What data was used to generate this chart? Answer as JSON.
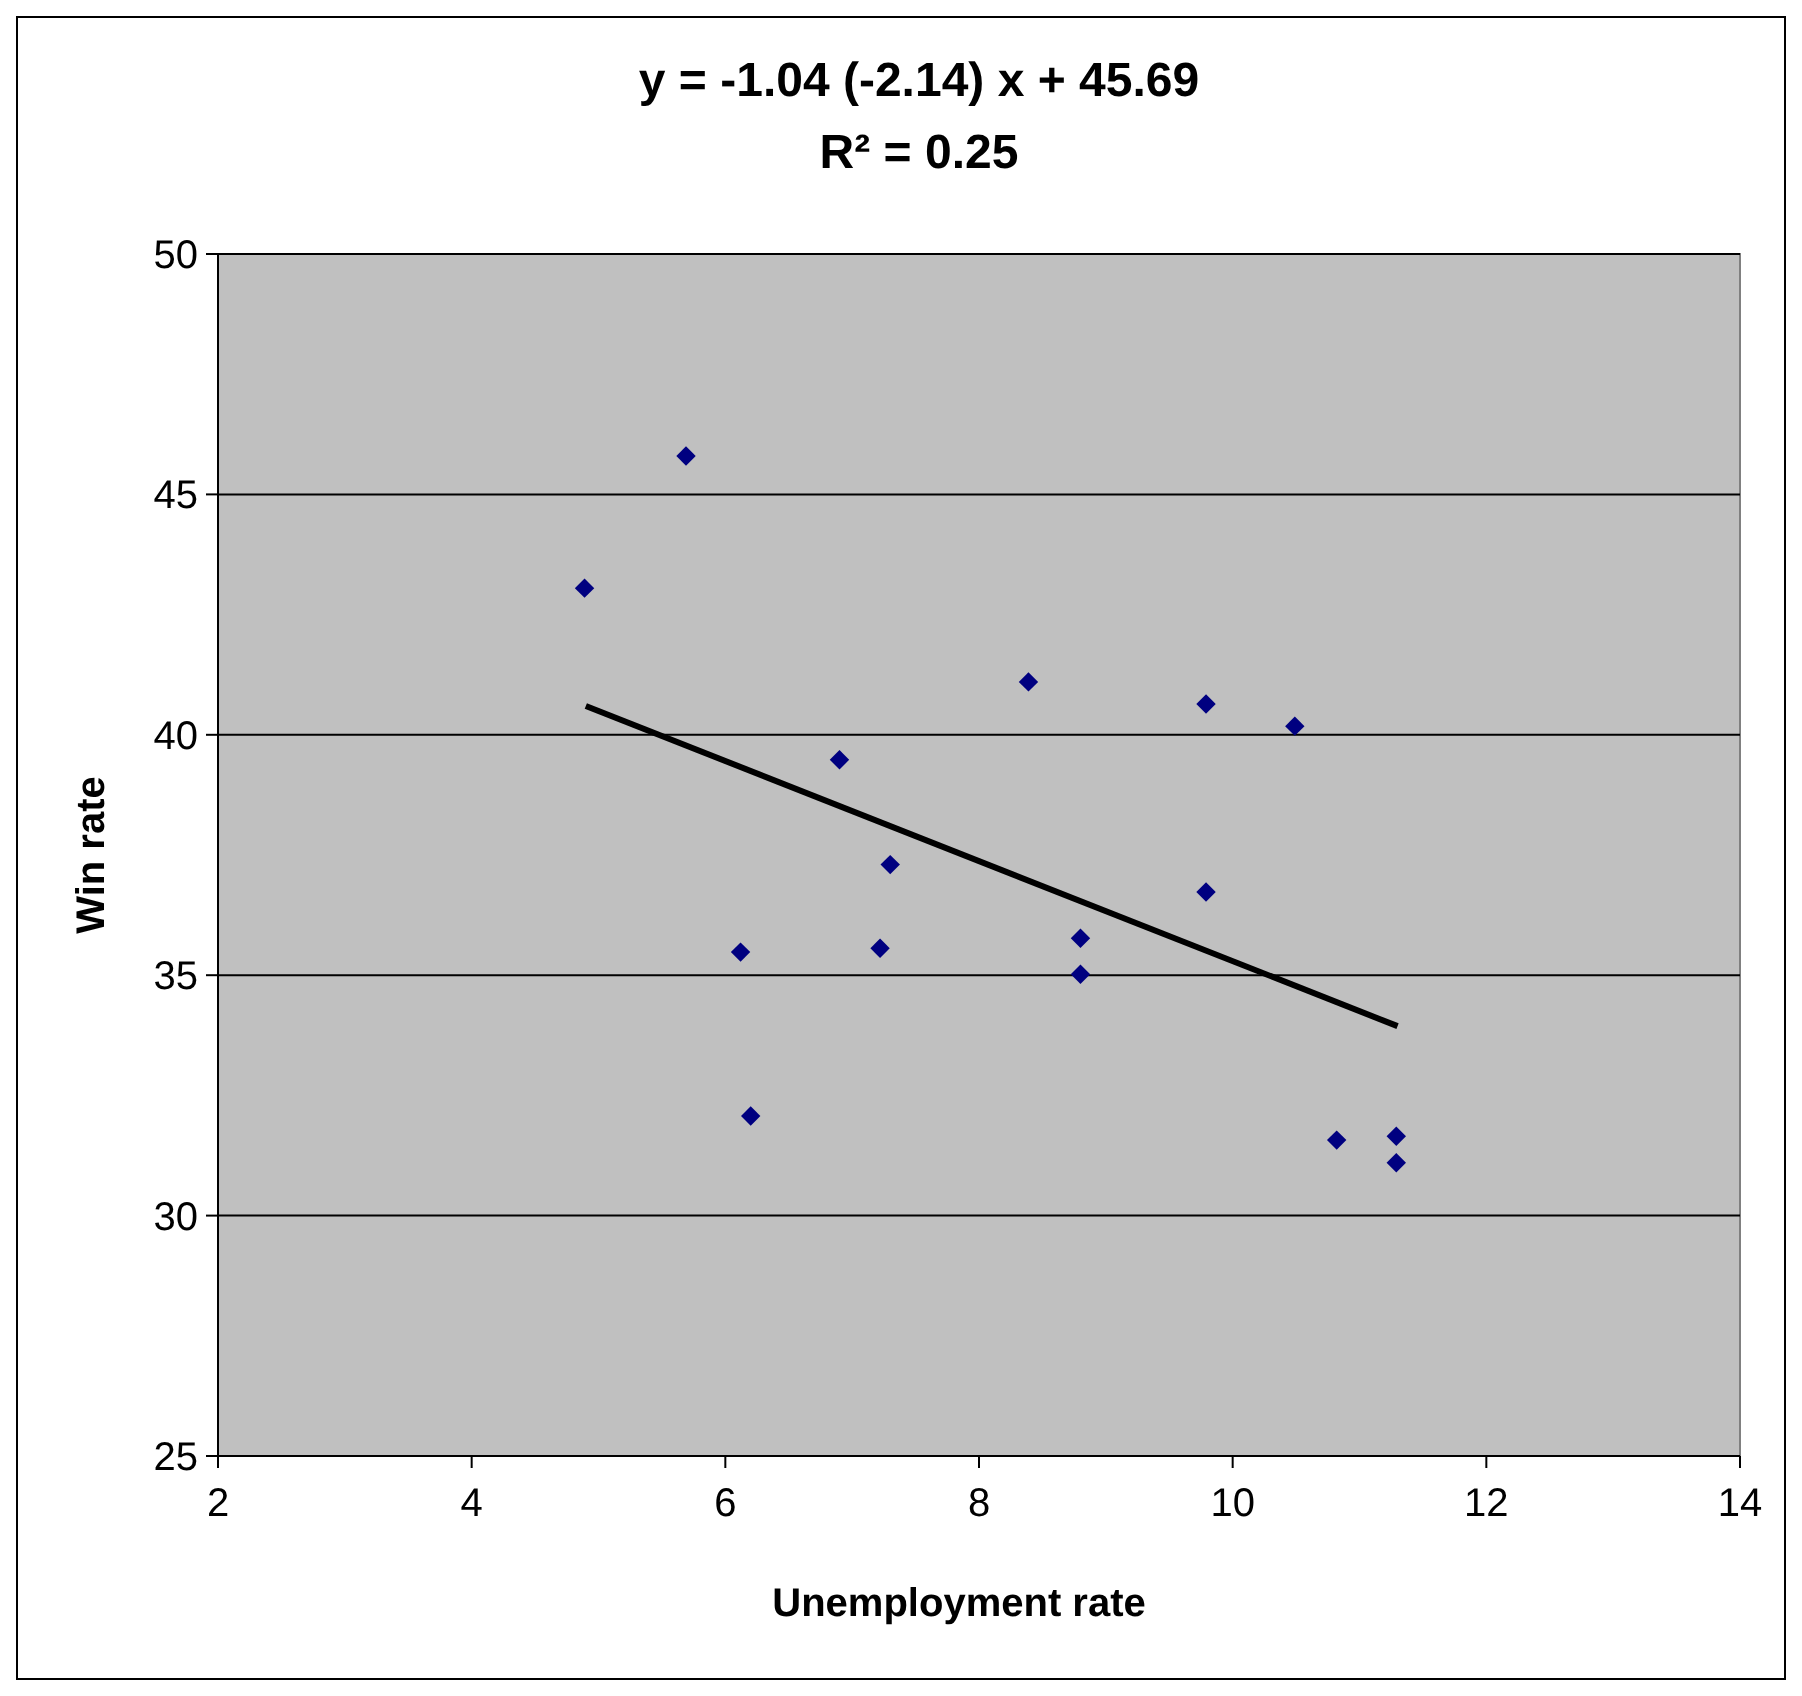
{
  "chart_data": {
    "type": "scatter",
    "title": "y = -1.04 (-2.14) x + 45.69",
    "subtitle": "R² = 0.25",
    "xlabel": "Unemployment rate",
    "ylabel": "Win rate",
    "xlim": [
      2,
      14
    ],
    "xticks": [
      2,
      4,
      6,
      8,
      10,
      12,
      14
    ],
    "ylim": [
      25,
      50
    ],
    "yticks": [
      25,
      30,
      35,
      40,
      45,
      50
    ],
    "grid": "y",
    "series": [
      {
        "marker": "diamond",
        "color": "#000080",
        "x": [
          4.89,
          5.69,
          6.9,
          7.3,
          7.22,
          6.12,
          6.2,
          8.39,
          8.8,
          8.8,
          9.79,
          9.79,
          10.49,
          10.82,
          11.29,
          11.29
        ],
        "values": [
          43.05,
          45.8,
          39.48,
          37.3,
          35.56,
          35.48,
          32.07,
          41.1,
          35.77,
          35.02,
          40.64,
          36.73,
          40.18,
          31.57,
          31.65,
          31.1
        ]
      },
      {
        "type": "line",
        "color": "#000000",
        "x": [
          4.9,
          11.3
        ],
        "values": [
          40.6,
          33.94
        ]
      }
    ]
  }
}
